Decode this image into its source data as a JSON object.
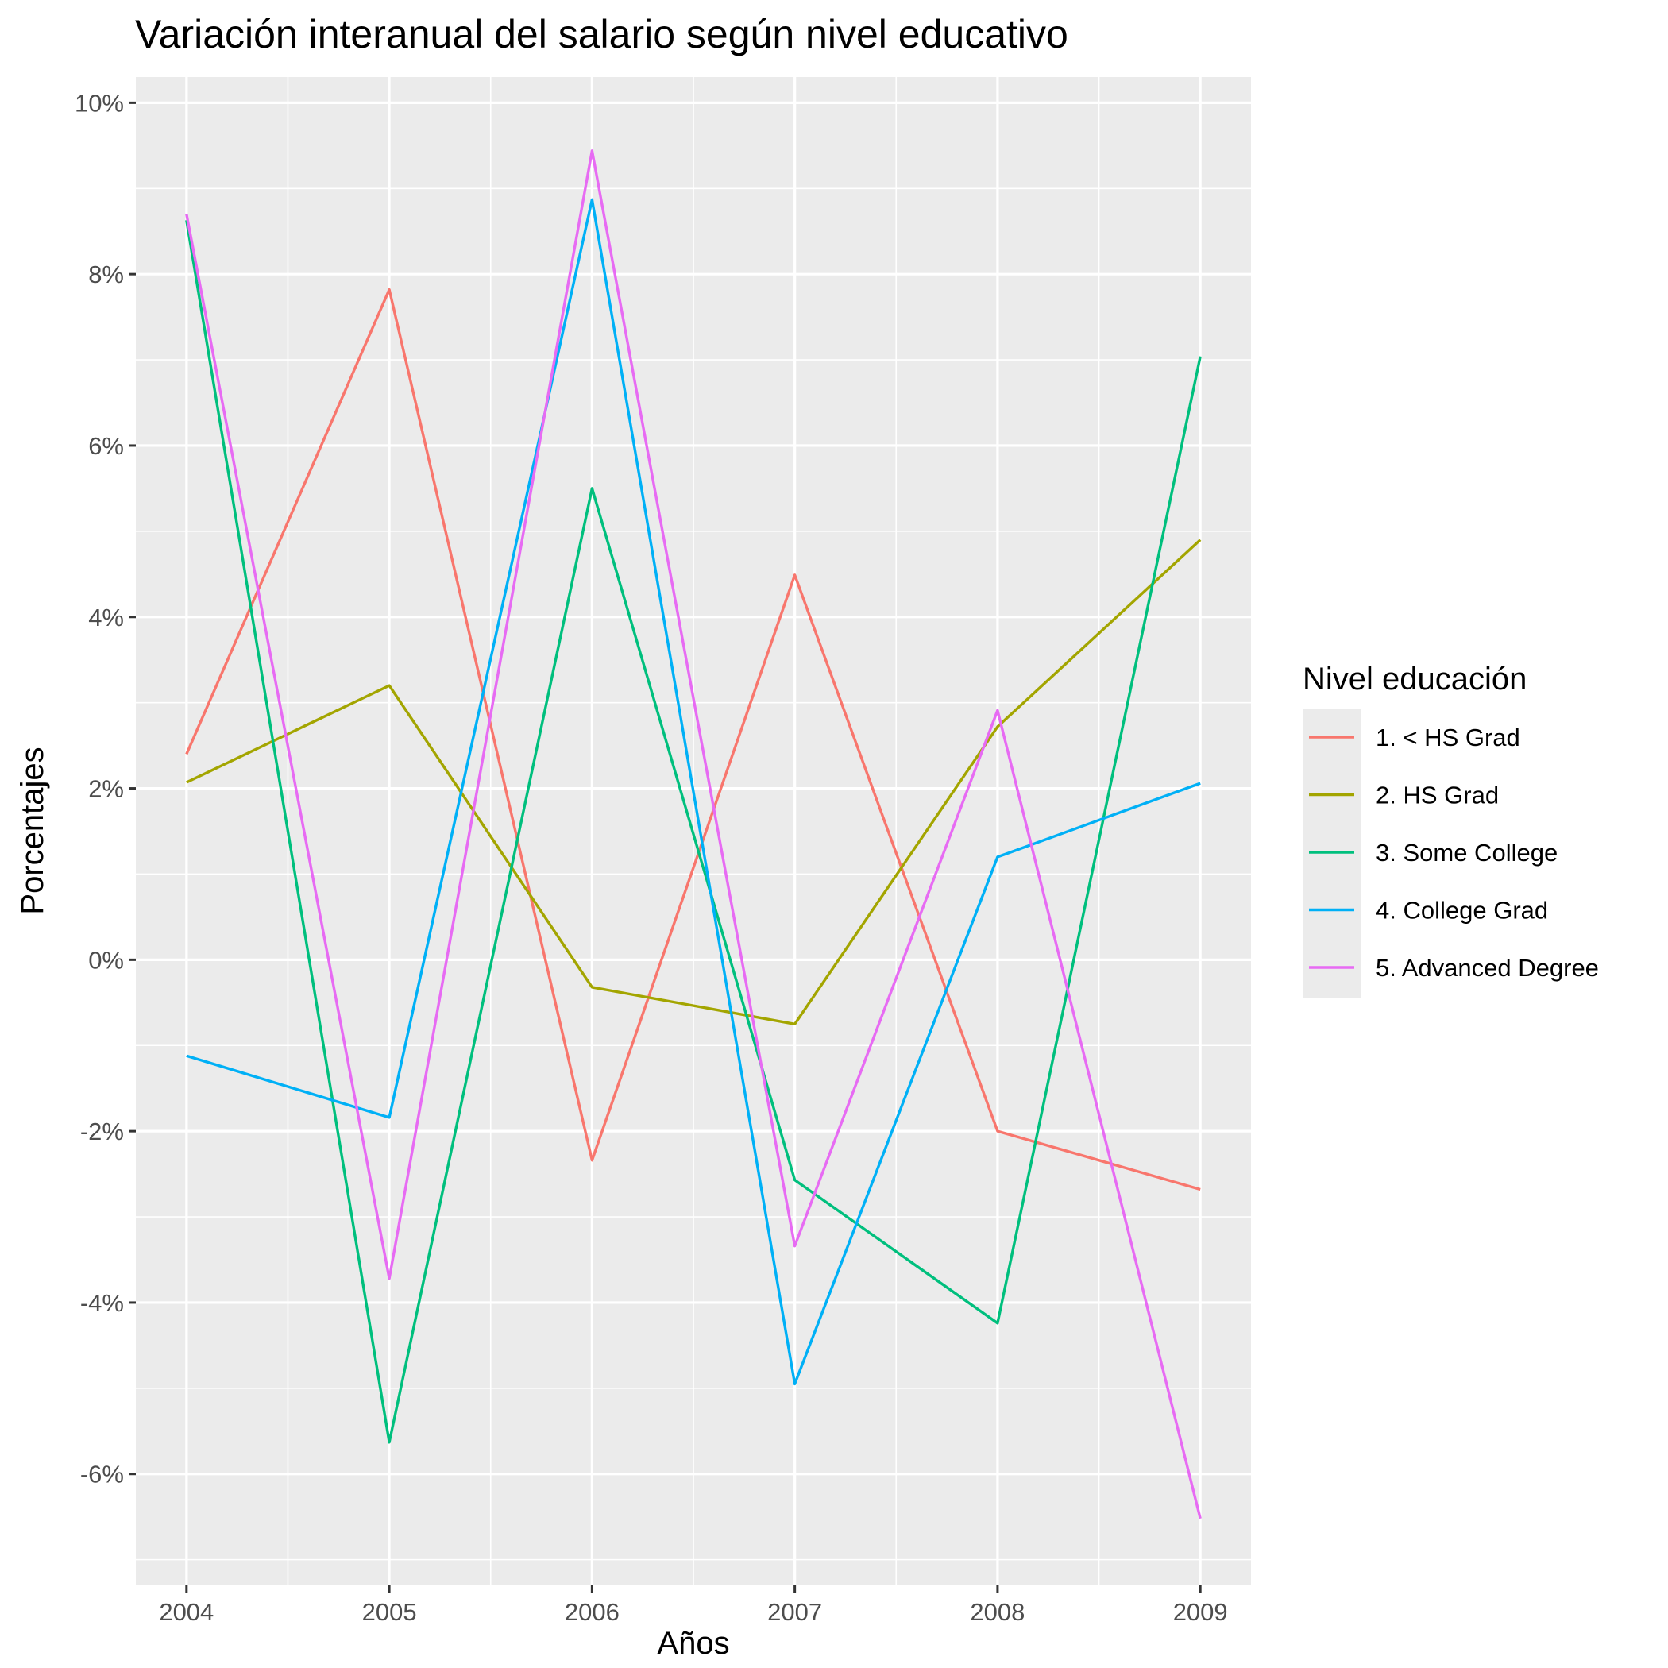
{
  "chart_data": {
    "type": "line",
    "title": "Variación interanual del salario según nivel educativo",
    "xlabel": "Años",
    "ylabel": "Porcentajes",
    "x": [
      2004,
      2005,
      2006,
      2007,
      2008,
      2009
    ],
    "x_tick_labels": [
      "2004",
      "2005",
      "2006",
      "2007",
      "2008",
      "2009"
    ],
    "y_ticks": [
      -6,
      -4,
      -2,
      0,
      2,
      4,
      6,
      8,
      10
    ],
    "y_tick_labels": [
      "-6%",
      "-4%",
      "-2%",
      "0%",
      "2%",
      "4%",
      "6%",
      "8%",
      "10%"
    ],
    "ylim": [
      -7.3,
      10.3
    ],
    "xlim": [
      2003.75,
      2009.25
    ],
    "grid": true,
    "legend": {
      "title": "Nivel educación",
      "position": "right"
    },
    "series": [
      {
        "name": "1. < HS Grad",
        "color": "#F8766D",
        "values": [
          2.4,
          7.82,
          -2.34,
          4.49,
          -2.0,
          -2.68
        ]
      },
      {
        "name": "2. HS Grad",
        "color": "#A3A500",
        "values": [
          2.07,
          3.2,
          -0.32,
          -0.75,
          2.72,
          4.9
        ]
      },
      {
        "name": "3. Some College",
        "color": "#00BF7D",
        "values": [
          8.63,
          -5.63,
          5.5,
          -2.57,
          -4.24,
          7.04
        ]
      },
      {
        "name": "4. College Grad",
        "color": "#00B0F6",
        "values": [
          -1.12,
          -1.84,
          8.87,
          -4.95,
          1.2,
          2.06
        ]
      },
      {
        "name": "5. Advanced Degree",
        "color": "#E76BF3",
        "values": [
          8.7,
          -3.72,
          9.44,
          -3.34,
          2.91,
          -6.52
        ]
      }
    ]
  }
}
